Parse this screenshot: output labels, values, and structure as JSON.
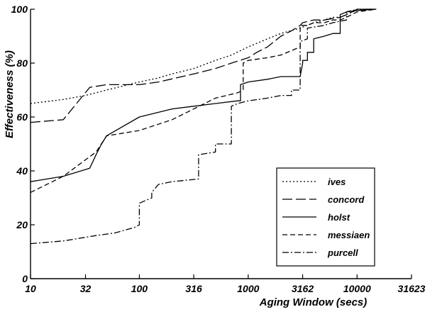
{
  "chart_data": {
    "type": "line",
    "xlabel": "Aging Window (secs)",
    "ylabel": "Effectiveness (%)",
    "x_scale": "log",
    "xlim": [
      10,
      31623
    ],
    "ylim": [
      0,
      100
    ],
    "x_ticks": [
      10,
      32,
      100,
      316,
      1000,
      3162,
      10000,
      31623
    ],
    "x_tick_labels": [
      "10",
      "32",
      "100",
      "316",
      "1000",
      "3162",
      "10000",
      "31623"
    ],
    "y_ticks": [
      0,
      20,
      40,
      60,
      80,
      100
    ],
    "y_tick_labels": [
      "0",
      "20",
      "40",
      "60",
      "80",
      "100"
    ],
    "grid": false,
    "legend_position": "bottom-right",
    "series": [
      {
        "name": "ives",
        "dash": "dotted",
        "x": [
          10,
          20,
          32,
          50,
          100,
          150,
          200,
          316,
          500,
          700,
          1000,
          1500,
          2000,
          3000,
          4000,
          5000,
          6000,
          7000,
          8000,
          9000,
          10000,
          12000,
          15000
        ],
        "y": [
          65,
          66.5,
          68,
          70,
          73,
          74.5,
          76,
          78,
          81,
          83,
          86,
          89,
          91,
          93,
          95,
          96,
          97,
          97,
          98,
          99,
          99.5,
          100,
          100
        ]
      },
      {
        "name": "concord",
        "dash": "long-dash",
        "x": [
          10,
          20,
          35,
          50,
          100,
          150,
          316,
          500,
          700,
          1000,
          1200,
          1500,
          2000,
          2500,
          3000,
          3162,
          4000,
          5000,
          7000,
          8000,
          9000,
          10000,
          12000,
          15000
        ],
        "y": [
          58,
          59,
          71,
          72,
          72,
          73,
          76,
          78,
          80,
          82,
          84,
          86,
          90,
          92,
          94,
          95,
          96,
          96,
          97,
          98,
          99,
          100,
          100,
          100
        ]
      },
      {
        "name": "holst",
        "dash": "solid",
        "x": [
          10,
          20,
          35,
          40,
          45,
          50,
          100,
          200,
          316,
          500,
          800,
          850,
          850,
          1000,
          1500,
          2000,
          3000,
          3162,
          3162,
          3500,
          3500,
          4000,
          4000,
          5000,
          6000,
          6500,
          7000,
          7000,
          8000,
          10000,
          15000
        ],
        "y": [
          36,
          38,
          41,
          46,
          50,
          53,
          60,
          63,
          64,
          65,
          66,
          66,
          72,
          73,
          74,
          75,
          75,
          80,
          81,
          81,
          84,
          84,
          89,
          90,
          91,
          91,
          91,
          98,
          99,
          99.5,
          100
        ]
      },
      {
        "name": "messiaen",
        "dash": "short-dash",
        "x": [
          10,
          20,
          40,
          50,
          100,
          200,
          316,
          500,
          800,
          900,
          900,
          1000,
          1500,
          2000,
          3000,
          3000,
          3500,
          4000,
          5000,
          6000,
          7000,
          8000,
          10000,
          15000
        ],
        "y": [
          32,
          38,
          47,
          53,
          55,
          59,
          63,
          67,
          69,
          70,
          80,
          81,
          82,
          83,
          86,
          94,
          94,
          95,
          95,
          96,
          96,
          97,
          99,
          100
        ]
      },
      {
        "name": "purcell",
        "dash": "dash-dot",
        "x": [
          10,
          20,
          40,
          60,
          90,
          100,
          100,
          130,
          130,
          150,
          200,
          350,
          350,
          500,
          500,
          700,
          700,
          800,
          1000,
          1500,
          2000,
          2500,
          2500,
          3000,
          3000,
          3500,
          3500,
          5000,
          6000,
          8000,
          8000,
          10000,
          15000
        ],
        "y": [
          13,
          14,
          16,
          17,
          19,
          20,
          28,
          30,
          32,
          35,
          36,
          37,
          46,
          47,
          50,
          50,
          64,
          65,
          66,
          67,
          68,
          68,
          70,
          70,
          88,
          89,
          93,
          94,
          95,
          96,
          99,
          100,
          100
        ]
      }
    ]
  }
}
